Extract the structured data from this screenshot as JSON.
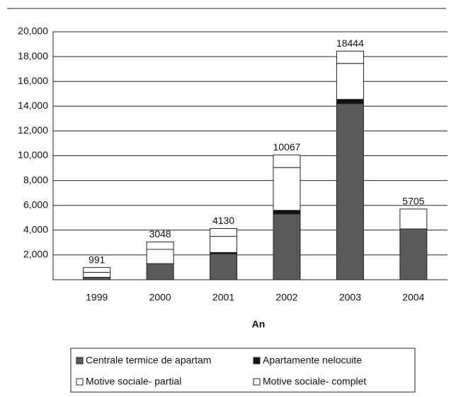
{
  "chart_data": {
    "type": "stacked_bar",
    "x_label": "An",
    "categories": [
      "1999",
      "2000",
      "2001",
      "2002",
      "2003",
      "2004"
    ],
    "series": [
      {
        "name": "Centrale termice de apartam",
        "color": "#5a5a5a",
        "values": [
          200,
          1300,
          2100,
          5300,
          14200,
          4100
        ]
      },
      {
        "name": "Apartamente nelocuite",
        "color": "#111111",
        "values": [
          0,
          0,
          100,
          300,
          350,
          0
        ]
      },
      {
        "name": "Motive sociale- partial",
        "color": "#ffffff",
        "values": [
          400,
          1150,
          1300,
          3450,
          2900,
          1605
        ]
      },
      {
        "name": "Motive sociale- complet",
        "color": "#ffffff",
        "values": [
          391,
          598,
          630,
          1017,
          994,
          0
        ]
      }
    ],
    "totals": [
      991,
      3048,
      4130,
      10067,
      18444,
      5705
    ],
    "ylim": [
      0,
      20000
    ],
    "yticks": [
      {
        "value": 2000,
        "label": "2,000"
      },
      {
        "value": 4000,
        "label": "4,000"
      },
      {
        "value": 6000,
        "label": "6,000"
      },
      {
        "value": 8000,
        "label": "8,000"
      },
      {
        "value": 10000,
        "label": "10,000"
      },
      {
        "value": 12000,
        "label": "12,000"
      },
      {
        "value": 14000,
        "label": "14,000"
      },
      {
        "value": 16000,
        "label": "16,000"
      },
      {
        "value": 18000,
        "label": "18,000"
      },
      {
        "value": 20000,
        "label": "20,000"
      }
    ],
    "grid": true,
    "legend": "bottom"
  }
}
